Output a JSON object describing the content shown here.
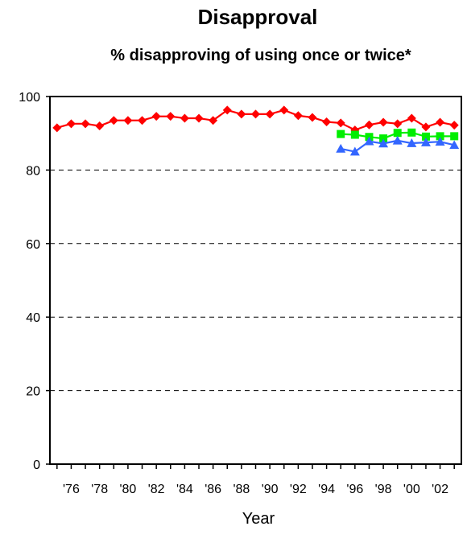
{
  "chart_data": {
    "type": "line",
    "title": "Disapproval",
    "subtitle": "% disapproving of using once or twice*",
    "xlabel": "Year",
    "ylabel": "",
    "ylim": [
      0,
      100
    ],
    "yticks": [
      0,
      20,
      40,
      60,
      80,
      100
    ],
    "xlim": [
      1974.5,
      2003.5
    ],
    "xticks": [
      1976,
      1978,
      1980,
      1982,
      1984,
      1986,
      1988,
      1990,
      1992,
      1994,
      1996,
      1998,
      2000,
      2002
    ],
    "xtick_labels": [
      "'76",
      "'78",
      "'80",
      "'82",
      "'84",
      "'86",
      "'88",
      "'90",
      "'92",
      "'94",
      "'96",
      "'98",
      "'00",
      "'02"
    ],
    "grid": "horizontal dashed",
    "series": [
      {
        "color": "#ff0000",
        "marker": "diamond",
        "x": [
          1975,
          1976,
          1977,
          1978,
          1979,
          1980,
          1981,
          1982,
          1983,
          1984,
          1985,
          1986,
          1987,
          1988,
          1989,
          1990,
          1991,
          1992,
          1993,
          1994,
          1995,
          1996,
          1997,
          1998,
          1999,
          2000,
          2001,
          2002,
          2003
        ],
        "values": [
          91.5,
          92.6,
          92.6,
          92.0,
          93.5,
          93.5,
          93.5,
          94.6,
          94.6,
          94.1,
          94.1,
          93.5,
          96.3,
          95.2,
          95.2,
          95.2,
          96.3,
          94.8,
          94.3,
          93.1,
          92.8,
          90.9,
          92.3,
          93.0,
          92.6,
          94.1,
          91.7,
          93.0,
          92.2
        ]
      },
      {
        "color": "#00ee00",
        "marker": "square",
        "x": [
          1995,
          1996,
          1997,
          1998,
          1999,
          2000,
          2001,
          2002,
          2003
        ],
        "values": [
          89.8,
          89.6,
          89.0,
          88.6,
          90.1,
          90.2,
          89.1,
          89.2,
          89.2
        ]
      },
      {
        "color": "#3366ff",
        "marker": "triangle",
        "x": [
          1995,
          1996,
          1997,
          1998,
          1999,
          2000,
          2001,
          2002,
          2003
        ],
        "values": [
          85.8,
          85.0,
          87.8,
          87.2,
          88.0,
          87.3,
          87.5,
          87.7,
          86.8
        ]
      }
    ]
  }
}
